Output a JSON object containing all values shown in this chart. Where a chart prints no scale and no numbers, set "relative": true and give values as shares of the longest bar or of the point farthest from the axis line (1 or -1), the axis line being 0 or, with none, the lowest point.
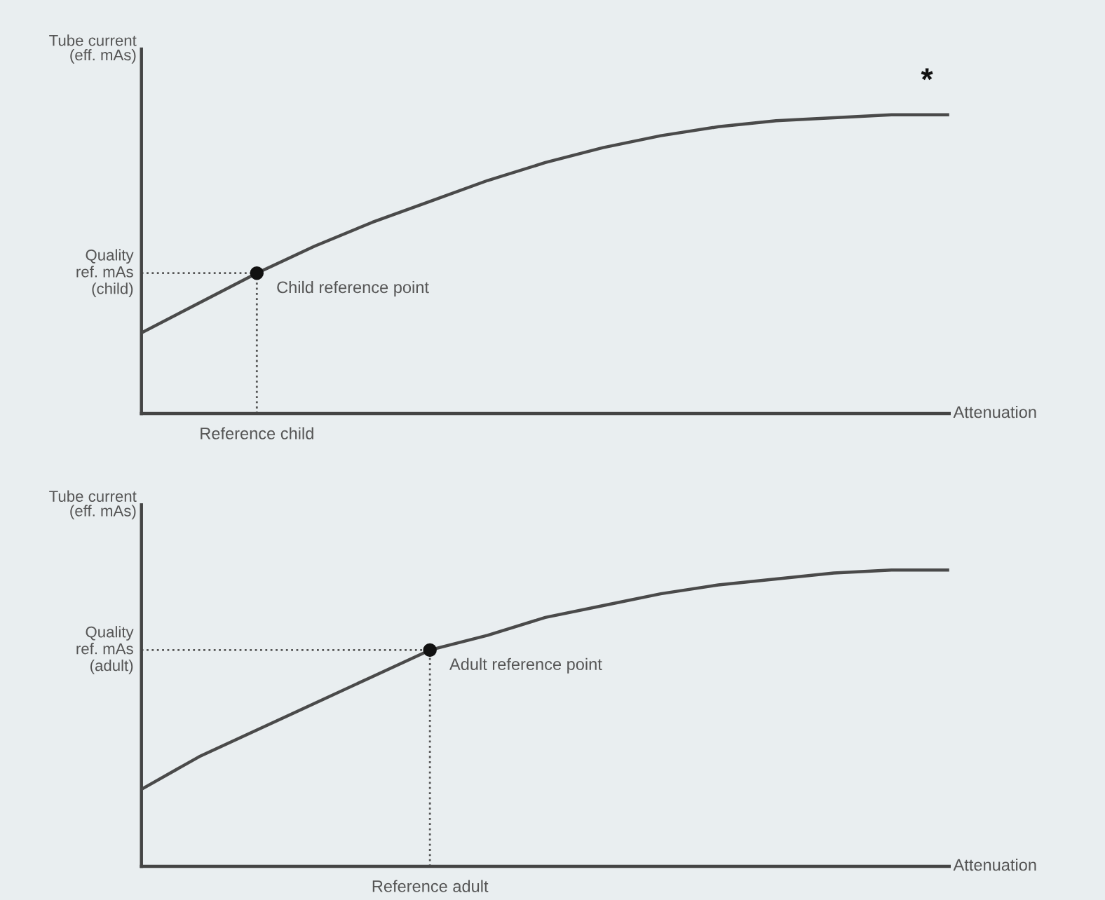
{
  "chart_data": [
    {
      "type": "line",
      "relative": true,
      "ylabel": "Tube current\n(eff. mAs)",
      "xlabel": "Attenuation",
      "annotations": [
        "*",
        "Child reference point",
        "Reference child"
      ],
      "ref_lines": [
        {
          "axis": "y",
          "value": 0.47,
          "label": "Quality\nref. mAs\n(child)",
          "color": "#555555",
          "line_style": "dotted"
        }
      ],
      "categories": [
        null,
        null,
        null,
        null,
        null,
        null,
        null,
        null,
        null,
        null,
        null,
        null,
        null,
        null,
        null
      ],
      "series": [
        {
          "color": "#4a4a4a",
          "values": [
            0.27,
            0.37,
            0.47,
            0.56,
            0.64,
            0.71,
            0.78,
            0.84,
            0.89,
            0.93,
            0.96,
            0.98,
            0.99,
            1.0,
            1.0
          ]
        }
      ]
    },
    {
      "type": "line",
      "relative": true,
      "ylabel": "Tube current\n(eff. mAs)",
      "xlabel": "Attenuation",
      "annotations": [
        "Adult reference point",
        "Reference adult"
      ],
      "ref_lines": [
        {
          "axis": "y",
          "value": 0.73,
          "label": "Quality\nref. mAs\n(adult)",
          "color": "#555555",
          "line_style": "dotted"
        }
      ],
      "categories": [
        null,
        null,
        null,
        null,
        null,
        null,
        null,
        null,
        null,
        null,
        null,
        null,
        null,
        null,
        null
      ],
      "series": [
        {
          "color": "#4a4a4a",
          "values": [
            0.26,
            0.37,
            0.46,
            0.55,
            0.64,
            0.73,
            0.78,
            0.84,
            0.88,
            0.92,
            0.95,
            0.97,
            0.99,
            1.0,
            1.0
          ]
        }
      ]
    }
  ]
}
